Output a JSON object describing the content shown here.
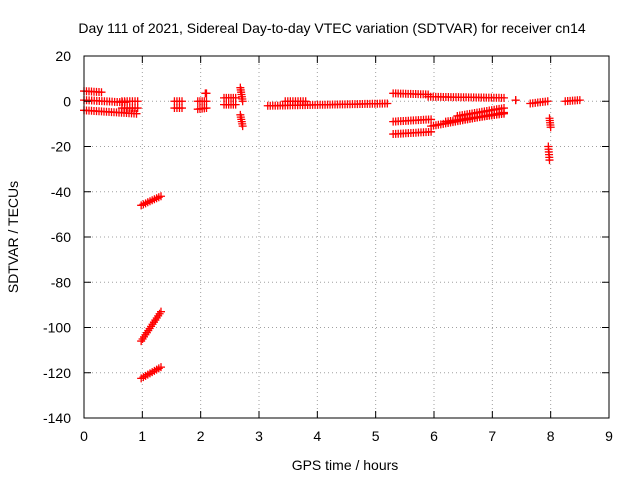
{
  "chart_data": {
    "type": "scatter",
    "title": "Day 111 of 2021, Sidereal Day-to-day VTEC variation (SDTVAR) for receiver cn14",
    "xlabel": "GPS time / hours",
    "ylabel": "SDTVAR / TECUs",
    "xlim": [
      0,
      9
    ],
    "ylim": [
      -140,
      20
    ],
    "xticks": [
      0,
      1,
      2,
      3,
      4,
      5,
      6,
      7,
      8,
      9
    ],
    "yticks": [
      -140,
      -120,
      -100,
      -80,
      -60,
      -40,
      -20,
      0,
      20
    ],
    "grid": true,
    "marker": "plus",
    "color": "#ff0000",
    "segments": [
      {
        "x": [
          0.0,
          0.3
        ],
        "y": [
          4.5,
          4.0
        ]
      },
      {
        "x": [
          0.0,
          0.7
        ],
        "y": [
          0.5,
          -0.5
        ]
      },
      {
        "x": [
          0.0,
          0.9
        ],
        "y": [
          -4.0,
          -5.5
        ]
      },
      {
        "x": [
          0.65,
          0.92
        ],
        "y": [
          0.0,
          0.0
        ]
      },
      {
        "x": [
          0.65,
          0.92
        ],
        "y": [
          -3.0,
          -3.0
        ]
      },
      {
        "x": [
          0.98,
          1.32
        ],
        "y": [
          -46.0,
          -42.0
        ]
      },
      {
        "x": [
          0.98,
          1.32
        ],
        "y": [
          -106.0,
          -93.0
        ]
      },
      {
        "x": [
          0.98,
          1.32
        ],
        "y": [
          -122.5,
          -117.5
        ]
      },
      {
        "x": [
          1.55,
          1.68
        ],
        "y": [
          0.0,
          0.0
        ]
      },
      {
        "x": [
          1.55,
          1.68
        ],
        "y": [
          -3.0,
          -3.0
        ]
      },
      {
        "x": [
          1.95,
          2.1
        ],
        "y": [
          0.0,
          0.0
        ]
      },
      {
        "x": [
          1.95,
          2.1
        ],
        "y": [
          -3.5,
          -3.0
        ]
      },
      {
        "x": [
          2.08,
          2.1
        ],
        "y": [
          3.5,
          3.5
        ]
      },
      {
        "x": [
          2.4,
          2.6
        ],
        "y": [
          1.5,
          1.5
        ]
      },
      {
        "x": [
          2.4,
          2.6
        ],
        "y": [
          -1.5,
          -1.5
        ]
      },
      {
        "x": [
          2.68,
          2.72
        ],
        "y": [
          6.0,
          0.0
        ]
      },
      {
        "x": [
          2.68,
          2.72
        ],
        "y": [
          -6.0,
          -11.0
        ]
      },
      {
        "x": [
          3.15,
          5.2
        ],
        "y": [
          -2.0,
          -1.0
        ]
      },
      {
        "x": [
          3.45,
          3.8
        ],
        "y": [
          0.0,
          0.0
        ]
      },
      {
        "x": [
          5.3,
          5.9
        ],
        "y": [
          3.5,
          3.0
        ]
      },
      {
        "x": [
          5.9,
          7.2
        ],
        "y": [
          2.0,
          1.5
        ]
      },
      {
        "x": [
          5.3,
          5.95
        ],
        "y": [
          -9.0,
          -8.0
        ]
      },
      {
        "x": [
          5.3,
          5.95
        ],
        "y": [
          -14.5,
          -13.5
        ]
      },
      {
        "x": [
          5.95,
          7.2
        ],
        "y": [
          -11.0,
          -5.0
        ]
      },
      {
        "x": [
          6.2,
          7.2
        ],
        "y": [
          -9.0,
          -5.5
        ]
      },
      {
        "x": [
          6.4,
          7.2
        ],
        "y": [
          -6.5,
          -3.0
        ]
      },
      {
        "x": [
          7.4,
          7.4
        ],
        "y": [
          0.5,
          0.5
        ]
      },
      {
        "x": [
          7.65,
          7.95
        ],
        "y": [
          -1.0,
          0.0
        ]
      },
      {
        "x": [
          7.98,
          8.0
        ],
        "y": [
          -7.5,
          -11.5
        ]
      },
      {
        "x": [
          7.96,
          7.98
        ],
        "y": [
          -20.0,
          -26.0
        ]
      },
      {
        "x": [
          8.25,
          8.5
        ],
        "y": [
          0.0,
          0.5
        ]
      }
    ]
  }
}
